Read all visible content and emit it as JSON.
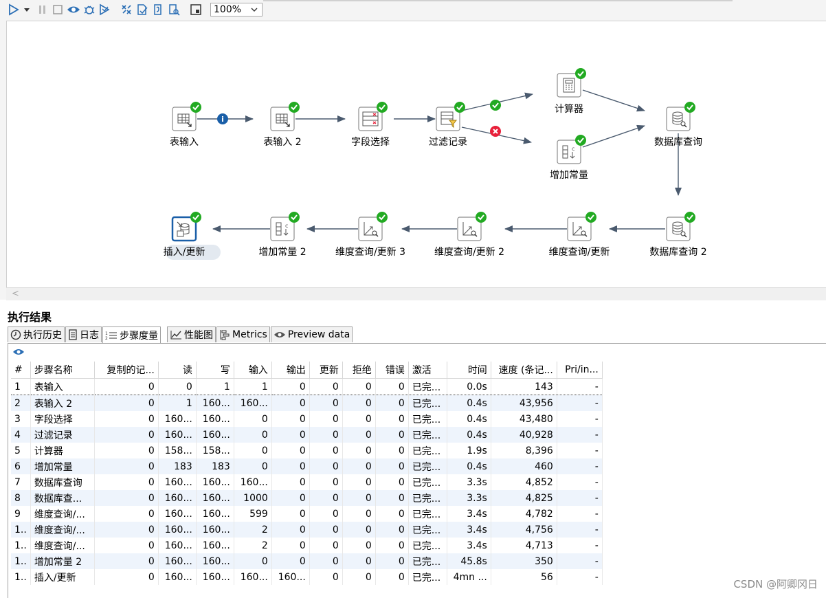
{
  "toolbar": {
    "zoom_value": "100%",
    "icons": [
      "run-icon",
      "run-options-icon",
      "pause-icon",
      "stop-icon",
      "preview-icon",
      "debug-icon",
      "replay-icon",
      "verify-icon",
      "impact-icon",
      "sql-icon",
      "explore-db-icon",
      "show-results-icon"
    ]
  },
  "steps": {
    "table_input": "表输入",
    "table_input_2": "表输入 2",
    "select_fields": "字段选择",
    "filter_rows": "过滤记录",
    "calculator": "计算器",
    "add_constants": "增加常量",
    "db_lookup": "数据库查询",
    "db_lookup_2": "数据库查询 2",
    "dim_update": "维度查询/更新",
    "dim_update_2": "维度查询/更新 2",
    "dim_update_3": "维度查询/更新 3",
    "add_constants_2": "增加常量 2",
    "insert_update": "插入/更新"
  },
  "results": {
    "title": "执行结果",
    "tabs": [
      {
        "label": "执行历史",
        "icon": "history-icon"
      },
      {
        "label": "日志",
        "icon": "log-icon"
      },
      {
        "label": "步骤度量",
        "icon": "metrics-icon"
      },
      {
        "label": "性能图",
        "icon": "chart-icon"
      },
      {
        "label": "Metrics",
        "icon": "gantt-icon"
      },
      {
        "label": "Preview data",
        "icon": "eye-icon"
      }
    ],
    "columns": [
      "#",
      "步骤名称",
      "复制的记...",
      "读",
      "写",
      "输入",
      "输出",
      "更新",
      "拒绝",
      "错误",
      "激活",
      "时间",
      "速度 (条记...",
      "Pri/in..."
    ],
    "rows": [
      [
        "1",
        "表输入",
        "0",
        "0",
        "1",
        "1",
        "0",
        "0",
        "0",
        "0",
        "已完...",
        "0.0s",
        "143",
        "-"
      ],
      [
        "2",
        "表输入 2",
        "0",
        "1",
        "160...",
        "160...",
        "0",
        "0",
        "0",
        "0",
        "已完...",
        "0.4s",
        "43,956",
        "-"
      ],
      [
        "3",
        "字段选择",
        "0",
        "160...",
        "160...",
        "0",
        "0",
        "0",
        "0",
        "0",
        "已完...",
        "0.4s",
        "43,480",
        "-"
      ],
      [
        "4",
        "过滤记录",
        "0",
        "160...",
        "160...",
        "0",
        "0",
        "0",
        "0",
        "0",
        "已完...",
        "0.4s",
        "40,928",
        "-"
      ],
      [
        "5",
        "计算器",
        "0",
        "158...",
        "158...",
        "0",
        "0",
        "0",
        "0",
        "0",
        "已完...",
        "1.9s",
        "8,396",
        "-"
      ],
      [
        "6",
        "增加常量",
        "0",
        "183",
        "183",
        "0",
        "0",
        "0",
        "0",
        "0",
        "已完...",
        "0.4s",
        "460",
        "-"
      ],
      [
        "7",
        "数据库查询",
        "0",
        "160...",
        "160...",
        "160...",
        "0",
        "0",
        "0",
        "0",
        "已完...",
        "3.3s",
        "4,852",
        "-"
      ],
      [
        "8",
        "数据库查...",
        "0",
        "160...",
        "160...",
        "1000",
        "0",
        "0",
        "0",
        "0",
        "已完...",
        "3.3s",
        "4,825",
        "-"
      ],
      [
        "9",
        "维度查询/...",
        "0",
        "160...",
        "160...",
        "599",
        "0",
        "0",
        "0",
        "0",
        "已完...",
        "3.4s",
        "4,782",
        "-"
      ],
      [
        "1..",
        "维度查询/...",
        "0",
        "160...",
        "160...",
        "2",
        "0",
        "0",
        "0",
        "0",
        "已完...",
        "3.4s",
        "4,756",
        "-"
      ],
      [
        "1..",
        "维度查询/...",
        "0",
        "160...",
        "160...",
        "2",
        "0",
        "0",
        "0",
        "0",
        "已完...",
        "3.4s",
        "4,713",
        "-"
      ],
      [
        "1..",
        "增加常量 2",
        "0",
        "160...",
        "160...",
        "0",
        "0",
        "0",
        "0",
        "0",
        "已完...",
        "45.8s",
        "350",
        "-"
      ],
      [
        "1..",
        "插入/更新",
        "0",
        "160...",
        "160...",
        "160...",
        "160...",
        "0",
        "0",
        "0",
        "已完...",
        "4mn ...",
        "56",
        "-"
      ]
    ]
  },
  "watermark": "CSDN @阿卿冈日",
  "colors": {
    "ok": "#22aa22",
    "error": "#e8203a",
    "info": "#1a5fa8",
    "hop": "#4a5a6e",
    "alt_row": "#eef4fc"
  }
}
